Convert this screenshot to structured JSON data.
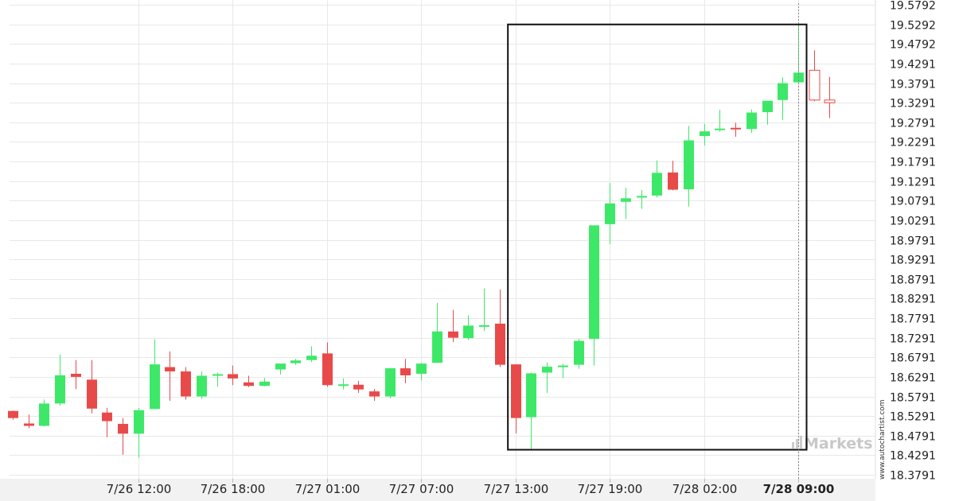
{
  "chart_data": {
    "type": "candlestick",
    "y_ticks": [
      "19.5792",
      "19.5292",
      "19.4792",
      "19.4291",
      "19.3791",
      "19.3291",
      "19.2791",
      "19.2291",
      "19.1791",
      "19.1291",
      "19.0791",
      "19.0291",
      "18.9791",
      "18.9291",
      "18.8791",
      "18.8291",
      "18.7791",
      "18.7291",
      "18.6791",
      "18.6291",
      "18.5791",
      "18.5291",
      "18.4791",
      "18.4291",
      "18.3791"
    ],
    "ylim": [
      18.3791,
      19.5792
    ],
    "x_ticks": [
      {
        "label": "7/26 12:00",
        "index": 8
      },
      {
        "label": "7/26 18:00",
        "index": 14
      },
      {
        "label": "7/27 01:00",
        "index": 20
      },
      {
        "label": "7/27 07:00",
        "index": 26
      },
      {
        "label": "7/27 13:00",
        "index": 32
      },
      {
        "label": "7/27 19:00",
        "index": 38
      },
      {
        "label": "7/28 02:00",
        "index": 44
      },
      {
        "label": "7/28 09:00",
        "index": 50,
        "highlight": true
      }
    ],
    "candles": [
      {
        "o": 18.542,
        "h": 18.543,
        "l": 18.52,
        "c": 18.524
      },
      {
        "o": 18.51,
        "h": 18.533,
        "l": 18.498,
        "c": 18.504
      },
      {
        "o": 18.504,
        "h": 18.571,
        "l": 18.502,
        "c": 18.561
      },
      {
        "o": 18.561,
        "h": 18.686,
        "l": 18.555,
        "c": 18.633
      },
      {
        "o": 18.637,
        "h": 18.672,
        "l": 18.598,
        "c": 18.629
      },
      {
        "o": 18.622,
        "h": 18.672,
        "l": 18.536,
        "c": 18.548
      },
      {
        "o": 18.538,
        "h": 18.55,
        "l": 18.475,
        "c": 18.516
      },
      {
        "o": 18.509,
        "h": 18.524,
        "l": 18.43,
        "c": 18.484
      },
      {
        "o": 18.484,
        "h": 18.55,
        "l": 18.423,
        "c": 18.544
      },
      {
        "o": 18.547,
        "h": 18.725,
        "l": 18.547,
        "c": 18.661
      },
      {
        "o": 18.654,
        "h": 18.694,
        "l": 18.568,
        "c": 18.643
      },
      {
        "o": 18.643,
        "h": 18.654,
        "l": 18.571,
        "c": 18.579
      },
      {
        "o": 18.579,
        "h": 18.643,
        "l": 18.573,
        "c": 18.632
      },
      {
        "o": 18.634,
        "h": 18.64,
        "l": 18.604,
        "c": 18.636
      },
      {
        "o": 18.636,
        "h": 18.658,
        "l": 18.608,
        "c": 18.625
      },
      {
        "o": 18.615,
        "h": 18.632,
        "l": 18.603,
        "c": 18.606
      },
      {
        "o": 18.606,
        "h": 18.626,
        "l": 18.605,
        "c": 18.617
      },
      {
        "o": 18.648,
        "h": 18.66,
        "l": 18.635,
        "c": 18.663
      },
      {
        "o": 18.664,
        "h": 18.675,
        "l": 18.66,
        "c": 18.671
      },
      {
        "o": 18.672,
        "h": 18.707,
        "l": 18.667,
        "c": 18.683
      },
      {
        "o": 18.689,
        "h": 18.717,
        "l": 18.604,
        "c": 18.608
      },
      {
        "o": 18.61,
        "h": 18.625,
        "l": 18.597,
        "c": 18.61
      },
      {
        "o": 18.609,
        "h": 18.619,
        "l": 18.588,
        "c": 18.597
      },
      {
        "o": 18.592,
        "h": 18.598,
        "l": 18.568,
        "c": 18.579
      },
      {
        "o": 18.579,
        "h": 18.651,
        "l": 18.574,
        "c": 18.651
      },
      {
        "o": 18.651,
        "h": 18.675,
        "l": 18.613,
        "c": 18.633
      },
      {
        "o": 18.637,
        "h": 18.665,
        "l": 18.62,
        "c": 18.663
      },
      {
        "o": 18.665,
        "h": 18.818,
        "l": 18.667,
        "c": 18.745
      },
      {
        "o": 18.745,
        "h": 18.8,
        "l": 18.718,
        "c": 18.729
      },
      {
        "o": 18.728,
        "h": 18.786,
        "l": 18.723,
        "c": 18.76
      },
      {
        "o": 18.76,
        "h": 18.855,
        "l": 18.746,
        "c": 18.761
      },
      {
        "o": 18.765,
        "h": 18.852,
        "l": 18.654,
        "c": 18.66
      },
      {
        "o": 18.661,
        "h": 18.661,
        "l": 18.485,
        "c": 18.524
      },
      {
        "o": 18.526,
        "h": 18.64,
        "l": 18.445,
        "c": 18.638
      },
      {
        "o": 18.64,
        "h": 18.666,
        "l": 18.588,
        "c": 18.655
      },
      {
        "o": 18.655,
        "h": 18.663,
        "l": 18.626,
        "c": 18.658
      },
      {
        "o": 18.66,
        "h": 18.726,
        "l": 18.65,
        "c": 18.721
      },
      {
        "o": 18.726,
        "h": 19.016,
        "l": 18.658,
        "c": 19.016
      },
      {
        "o": 19.019,
        "h": 19.124,
        "l": 18.968,
        "c": 19.072
      },
      {
        "o": 19.076,
        "h": 19.112,
        "l": 19.032,
        "c": 19.085
      },
      {
        "o": 19.088,
        "h": 19.106,
        "l": 19.058,
        "c": 19.091
      },
      {
        "o": 19.092,
        "h": 19.182,
        "l": 19.087,
        "c": 19.15
      },
      {
        "o": 19.151,
        "h": 19.181,
        "l": 19.105,
        "c": 19.107
      },
      {
        "o": 19.108,
        "h": 19.27,
        "l": 19.064,
        "c": 19.233
      },
      {
        "o": 19.244,
        "h": 19.275,
        "l": 19.22,
        "c": 19.256
      },
      {
        "o": 19.26,
        "h": 19.311,
        "l": 19.255,
        "c": 19.263
      },
      {
        "o": 19.265,
        "h": 19.278,
        "l": 19.242,
        "c": 19.264
      },
      {
        "o": 19.262,
        "h": 19.312,
        "l": 19.252,
        "c": 19.304
      },
      {
        "o": 19.305,
        "h": 19.334,
        "l": 19.273,
        "c": 19.334
      },
      {
        "o": 19.336,
        "h": 19.394,
        "l": 19.285,
        "c": 19.379
      },
      {
        "o": 19.381,
        "h": 19.535,
        "l": 19.381,
        "c": 19.406
      },
      {
        "o": 19.412,
        "h": 19.463,
        "l": 19.333,
        "c": 19.336
      },
      {
        "o": 19.336,
        "h": 19.395,
        "l": 19.29,
        "c": 19.329
      }
    ],
    "filled_bearish_until_index": 50,
    "pattern_box": {
      "from_index": 32,
      "to_index": 50,
      "y_high": 19.529,
      "y_low": 18.443
    },
    "crosshair_index": 50,
    "colors": {
      "bull": "#3de868",
      "bear": "#e84a4a",
      "box": "#111111",
      "grid": "#e8e8e8",
      "axis_band": "#f2f2f2"
    }
  },
  "watermark": "Markets",
  "attribution": "www.autochartist.com"
}
